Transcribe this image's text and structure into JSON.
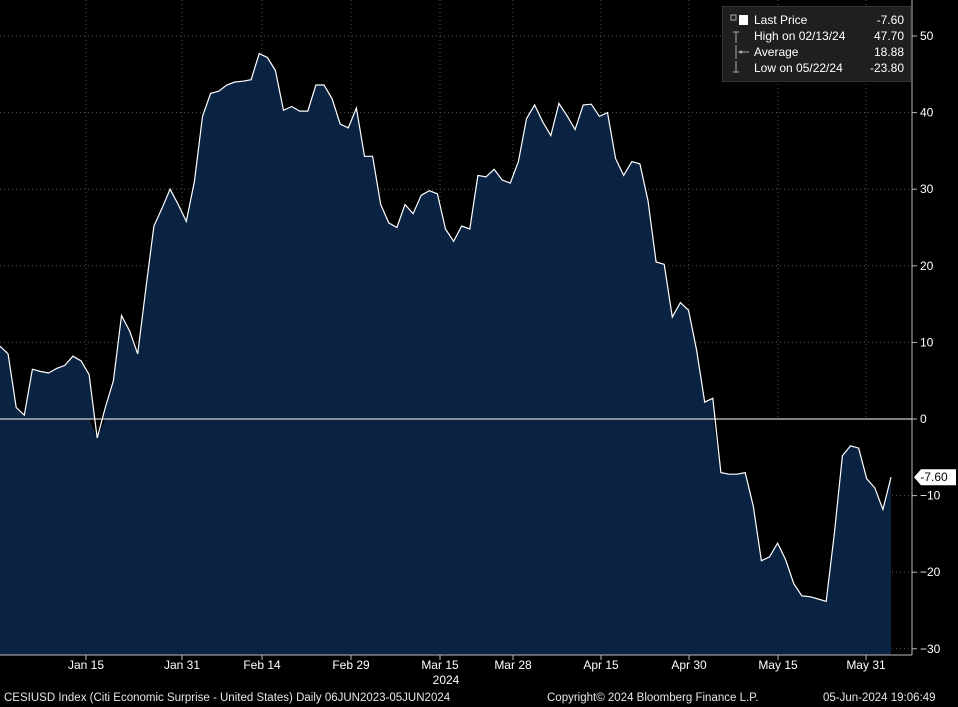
{
  "chart_data": {
    "type": "area",
    "title": "",
    "xlabel": "",
    "ylabel": "",
    "ylim": [
      -31,
      56
    ],
    "yticks": [
      50,
      40,
      30,
      20,
      10,
      0,
      -10,
      -20,
      -30
    ],
    "x_tick_labels": [
      "Jan 15",
      "Jan 31",
      "Feb 14",
      "Feb 29",
      "Mar 15",
      "Mar 28",
      "Apr 15",
      "Apr 30",
      "May 15",
      "May 31"
    ],
    "year_label": "2024",
    "last_value_label": "-7.60",
    "series": [
      {
        "values": [
          9.5,
          8.5,
          1.5,
          0.5,
          6.5,
          6.2,
          6.0,
          6.6,
          7.0,
          8.2,
          7.6,
          5.8,
          -2.5,
          1.5,
          5.0,
          13.5,
          11.5,
          8.5,
          17.0,
          25.2,
          27.5,
          30.0,
          28.0,
          25.8,
          31.0,
          39.5,
          42.5,
          42.8,
          43.6,
          44.0,
          44.1,
          44.3,
          47.7,
          47.2,
          45.5,
          40.3,
          40.8,
          40.2,
          40.2,
          43.6,
          43.6,
          41.8,
          38.5,
          38.0,
          40.6,
          34.3,
          34.3,
          28.0,
          25.6,
          25.0,
          28.0,
          26.8,
          29.2,
          29.8,
          29.4,
          24.8,
          23.2,
          25.2,
          24.8,
          31.8,
          31.6,
          32.6,
          31.2,
          30.8,
          33.6,
          39.2,
          41.0,
          38.8,
          37.0,
          41.2,
          39.6,
          37.8,
          41.0,
          41.1,
          39.5,
          40.0,
          34.0,
          31.8,
          33.6,
          33.3,
          28.5,
          20.5,
          20.2,
          13.3,
          15.2,
          14.2,
          9.0,
          2.2,
          2.7,
          -7.0,
          -7.2,
          -7.2,
          -7.0,
          -11.4,
          -18.5,
          -18.0,
          -16.2,
          -18.4,
          -21.5,
          -23.1,
          -23.2,
          -23.5,
          -23.8,
          -15.0,
          -4.8,
          -3.5,
          -3.8,
          -7.8,
          -9.0,
          -11.8,
          -7.6
        ]
      }
    ]
  },
  "legend": {
    "rows": [
      {
        "label": "Last Price",
        "value": "-7.60"
      },
      {
        "label": "High on 02/13/24",
        "value": "47.70"
      },
      {
        "label": "Average",
        "value": "18.88"
      },
      {
        "label": "Low on 05/22/24",
        "value": "-23.80"
      }
    ]
  },
  "footer": {
    "security": "CESIUSD Index (Citi Economic Surprise - United States)  Daily 06JUN2023-05JUN2024",
    "copyright": "Copyright© 2024 Bloomberg Finance L.P.",
    "timestamp": "05-Jun-2024 19:06:49"
  },
  "colors": {
    "background": "#000000",
    "area_fill": "#0b2343",
    "line": "#ffffff",
    "grid": "#555555",
    "zero_line": "#ffffff"
  }
}
